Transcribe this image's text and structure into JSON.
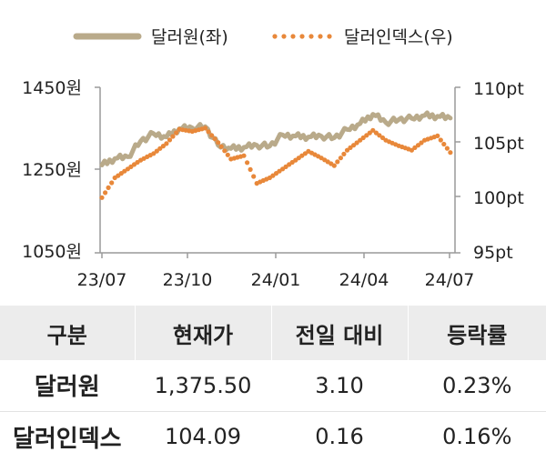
{
  "chart_data": {
    "type": "line",
    "title": "",
    "legend_position": "top",
    "x_ticks": [
      "23/07",
      "23/10",
      "24/01",
      "24/04",
      "24/07"
    ],
    "y_left": {
      "ticks": [
        "1450원",
        "1250원",
        "1050원"
      ],
      "range": [
        1050,
        1450
      ]
    },
    "y_right": {
      "ticks": [
        "110pt",
        "105pt",
        "100pt",
        "95pt"
      ],
      "range": [
        95,
        110
      ]
    },
    "series": [
      {
        "name": "달러원(좌)",
        "axis": "left",
        "style": "line",
        "color": "#b9aa8a",
        "x": [
          "2023-07-03",
          "2023-07-17",
          "2023-07-31",
          "2023-08-14",
          "2023-08-28",
          "2023-09-11",
          "2023-09-25",
          "2023-10-09",
          "2023-10-23",
          "2023-11-06",
          "2023-11-20",
          "2023-12-04",
          "2023-12-18",
          "2024-01-01",
          "2024-01-15",
          "2024-01-29",
          "2024-02-12",
          "2024-02-26",
          "2024-03-11",
          "2024-03-25",
          "2024-04-08",
          "2024-04-22",
          "2024-05-06",
          "2024-05-20",
          "2024-06-03",
          "2024-06-17",
          "2024-07-01",
          "2024-07-15"
        ],
        "values": [
          1262,
          1278,
          1282,
          1320,
          1338,
          1330,
          1350,
          1352,
          1355,
          1310,
          1302,
          1305,
          1310,
          1308,
          1335,
          1332,
          1330,
          1332,
          1328,
          1348,
          1362,
          1385,
          1365,
          1372,
          1375,
          1382,
          1380,
          1375.5
        ]
      },
      {
        "name": "달러인덱스(우)",
        "axis": "right",
        "style": "dotted",
        "color": "#e8883a",
        "x": [
          "2023-07-03",
          "2023-07-17",
          "2023-07-31",
          "2023-08-14",
          "2023-08-28",
          "2023-09-11",
          "2023-09-25",
          "2023-10-09",
          "2023-10-23",
          "2023-11-06",
          "2023-11-20",
          "2023-12-04",
          "2023-12-18",
          "2024-01-01",
          "2024-01-15",
          "2024-01-29",
          "2024-02-12",
          "2024-02-26",
          "2024-03-11",
          "2024-03-25",
          "2024-04-08",
          "2024-04-22",
          "2024-05-06",
          "2024-05-20",
          "2024-06-03",
          "2024-06-17",
          "2024-07-01",
          "2024-07-15"
        ],
        "values": [
          100.0,
          101.8,
          102.6,
          103.4,
          104.0,
          104.9,
          106.2,
          106.0,
          106.3,
          105.0,
          103.5,
          103.8,
          101.3,
          101.8,
          102.6,
          103.4,
          104.2,
          103.6,
          102.9,
          104.3,
          105.2,
          106.1,
          105.2,
          104.7,
          104.3,
          105.2,
          105.6,
          104.09
        ]
      }
    ]
  },
  "table": {
    "headers": [
      "구분",
      "현재가",
      "전일 대비",
      "등락률"
    ],
    "rows": [
      {
        "label": "달러원",
        "price": "1,375.50",
        "change": "3.10",
        "rate": "0.23%"
      },
      {
        "label": "달러인덱스",
        "price": "104.09",
        "change": "0.16",
        "rate": "0.16%"
      }
    ]
  }
}
